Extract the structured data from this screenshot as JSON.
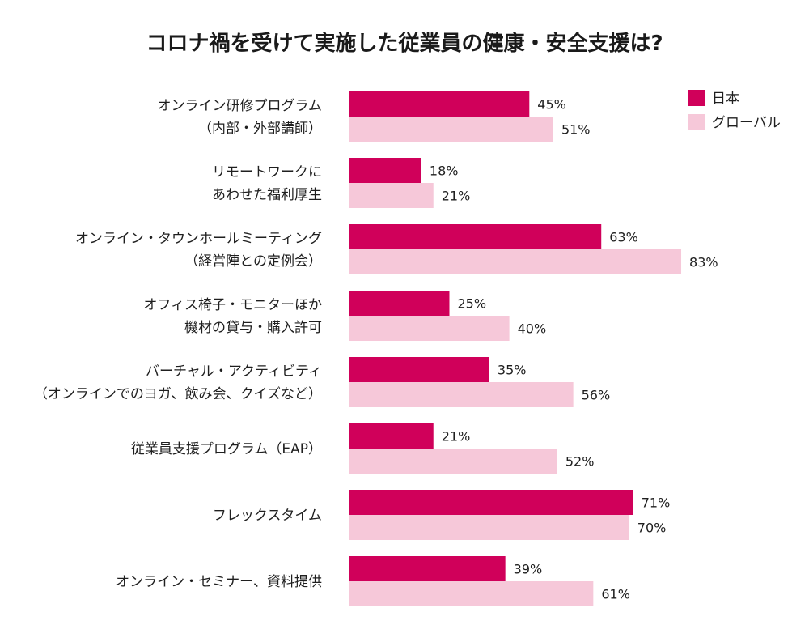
{
  "chart_data": {
    "type": "bar",
    "orientation": "horizontal",
    "title": "コロナ禍を受けて実施した従業員の健康・安全支援は?",
    "value_suffix": "%",
    "xlim": [
      0,
      100
    ],
    "grid": false,
    "legend_position": "top-right",
    "categories": [
      [
        "オンライン研修プログラム",
        "（内部・外部講師）"
      ],
      [
        "リモートワークに",
        "あわせた福利厚生"
      ],
      [
        "オンライン・タウンホールミーティング",
        "（経営陣との定例会）"
      ],
      [
        "オフィス椅子・モニターほか",
        "機材の貸与・購入許可"
      ],
      [
        "バーチャル・アクティビティ",
        "（オンラインでのヨガ、飲み会、クイズなど）"
      ],
      [
        "従業員支援プログラム（EAP）"
      ],
      [
        "フレックスタイム"
      ],
      [
        "オンライン・セミナー、資料提供"
      ]
    ],
    "series": [
      {
        "name": "日本",
        "color": "#d0005a",
        "values": [
          45,
          18,
          63,
          25,
          35,
          21,
          71,
          39
        ]
      },
      {
        "name": "グローバル",
        "color": "#f6c8d9",
        "values": [
          51,
          21,
          83,
          40,
          56,
          52,
          70,
          61
        ]
      }
    ]
  }
}
